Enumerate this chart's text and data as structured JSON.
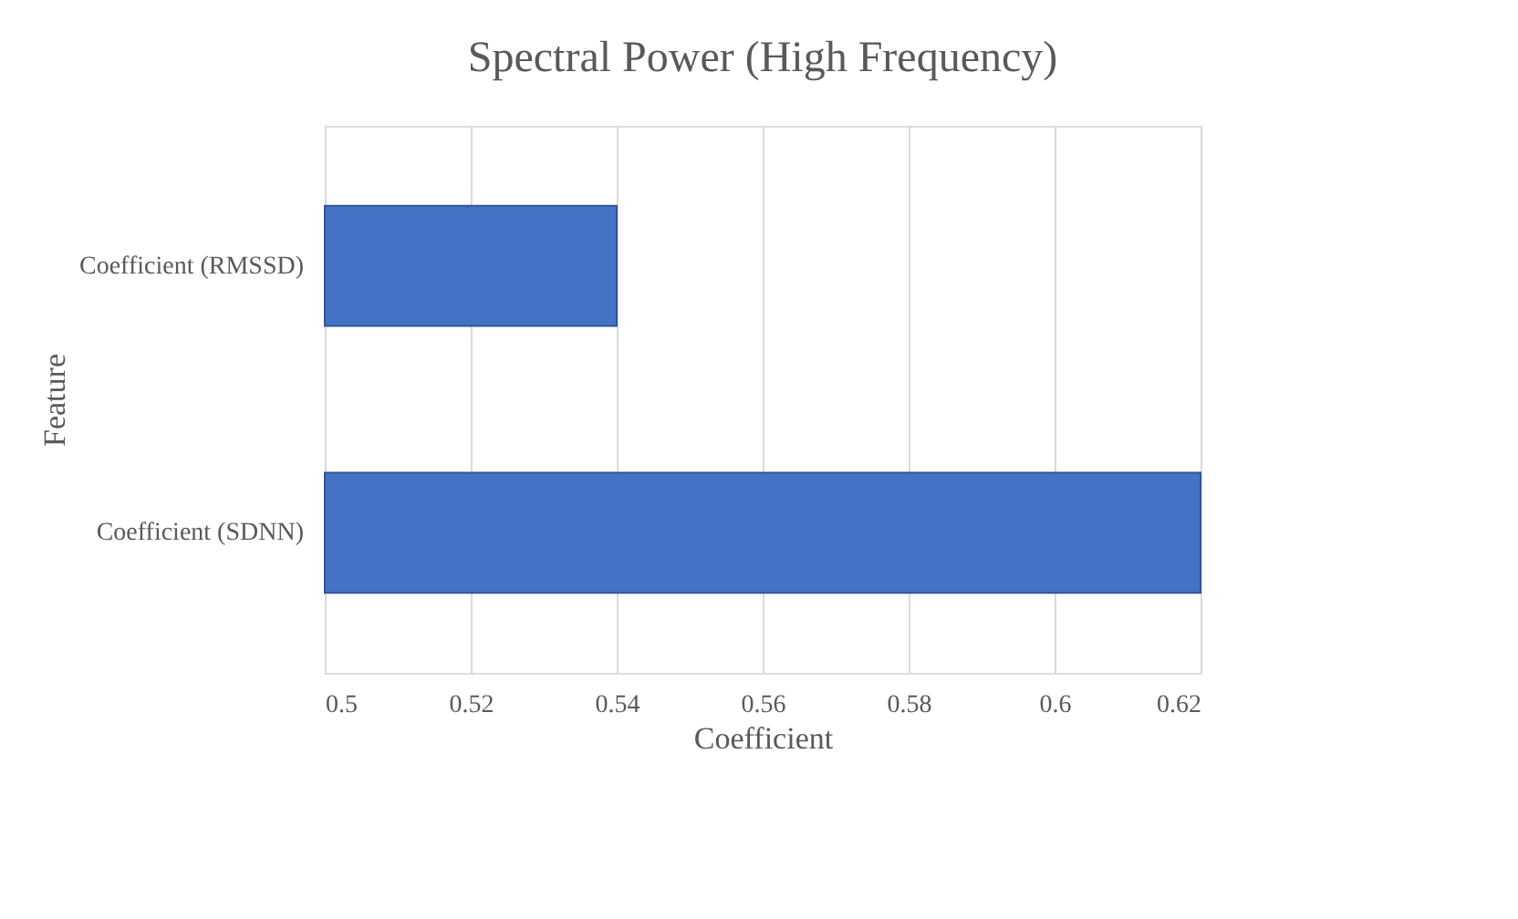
{
  "chart_data": {
    "type": "bar",
    "orientation": "horizontal",
    "title": "Spectral Power (High Frequency)",
    "xlabel": "Coefficient",
    "ylabel": "Feature",
    "categories": [
      "Coefficient (RMSSD)",
      "Coefficient (SDNN)"
    ],
    "values": [
      0.54,
      0.62
    ],
    "color": "#4472c4",
    "xlim": [
      0.5,
      0.62
    ],
    "xticks": [
      0.5,
      0.52,
      0.54,
      0.56,
      0.58,
      0.6,
      0.62
    ],
    "grid": "x"
  }
}
